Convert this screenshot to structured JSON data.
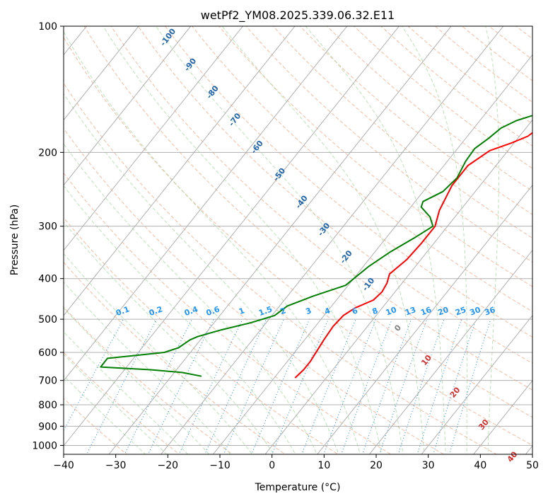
{
  "chart_data": {
    "type": "line",
    "subtype": "skew-t log-p",
    "title": "wetPf2_YM08.2025.339.06.32.E11",
    "xlabel": "Temperature (°C)",
    "ylabel": "Pressure (hPa)",
    "xlim": [
      -40,
      50
    ],
    "ylim": [
      1050,
      100
    ],
    "y_scale": "log",
    "x_ticks": [
      "−40",
      "−30",
      "−20",
      "−10",
      "0",
      "10",
      "20",
      "30",
      "40",
      "50"
    ],
    "y_ticks": [
      "1000",
      "900",
      "800",
      "700",
      "600",
      "500",
      "400",
      "300",
      "200",
      "100"
    ],
    "grid": true,
    "series": [
      {
        "key": "temperature",
        "color": "#ff0000",
        "points": [
          {
            "p": 690,
            "t": -6.0
          },
          {
            "p": 660,
            "t": -5.6
          },
          {
            "p": 630,
            "t": -5.6
          },
          {
            "p": 560,
            "t": -6.3
          },
          {
            "p": 520,
            "t": -6.6
          },
          {
            "p": 490,
            "t": -6.3
          },
          {
            "p": 470,
            "t": -5.2
          },
          {
            "p": 450,
            "t": -2.9
          },
          {
            "p": 430,
            "t": -2.5
          },
          {
            "p": 410,
            "t": -2.9
          },
          {
            "p": 390,
            "t": -3.8
          },
          {
            "p": 360,
            "t": -2.7
          },
          {
            "p": 330,
            "t": -2.4
          },
          {
            "p": 300,
            "t": -2.4
          },
          {
            "p": 275,
            "t": -4.0
          },
          {
            "p": 240,
            "t": -5.4
          },
          {
            "p": 215,
            "t": -5.4
          },
          {
            "p": 198,
            "t": -3.5
          },
          {
            "p": 190,
            "t": -0.5
          },
          {
            "p": 183,
            "t": 1.6
          },
          {
            "p": 170,
            "t": 3.0
          },
          {
            "p": 158,
            "t": 5.5
          },
          {
            "p": 145,
            "t": 10.3
          },
          {
            "p": 133,
            "t": 18.0
          },
          {
            "p": 120,
            "t": 26.5
          },
          {
            "p": 110,
            "t": 30.3
          },
          {
            "p": 100,
            "t": 33.5
          }
        ]
      },
      {
        "key": "dewpoint",
        "color": "#008000",
        "points": [
          {
            "p": 684,
            "t": -24.2
          },
          {
            "p": 670,
            "t": -28.5
          },
          {
            "p": 660,
            "t": -35.0
          },
          {
            "p": 650,
            "t": -45.0
          },
          {
            "p": 620,
            "t": -45.0
          },
          {
            "p": 610,
            "t": -40.0
          },
          {
            "p": 600,
            "t": -35.0
          },
          {
            "p": 585,
            "t": -33.0
          },
          {
            "p": 560,
            "t": -32.0
          },
          {
            "p": 550,
            "t": -31.0
          },
          {
            "p": 530,
            "t": -27.5
          },
          {
            "p": 510,
            "t": -23.0
          },
          {
            "p": 490,
            "t": -19.5
          },
          {
            "p": 465,
            "t": -18.5
          },
          {
            "p": 440,
            "t": -15.0
          },
          {
            "p": 415,
            "t": -10.5
          },
          {
            "p": 375,
            "t": -9.0
          },
          {
            "p": 345,
            "t": -7.0
          },
          {
            "p": 320,
            "t": -4.6
          },
          {
            "p": 300,
            "t": -2.8
          },
          {
            "p": 285,
            "t": -4.8
          },
          {
            "p": 270,
            "t": -8.0
          },
          {
            "p": 262,
            "t": -8.5
          },
          {
            "p": 248,
            "t": -6.2
          },
          {
            "p": 230,
            "t": -5.6
          },
          {
            "p": 210,
            "t": -6.5
          },
          {
            "p": 196,
            "t": -6.7
          },
          {
            "p": 185,
            "t": -5.6
          },
          {
            "p": 175,
            "t": -4.8
          },
          {
            "p": 168,
            "t": -3.0
          },
          {
            "p": 162,
            "t": 0.0
          },
          {
            "p": 155,
            "t": 2.0
          },
          {
            "p": 145,
            "t": 3.6
          },
          {
            "p": 135,
            "t": 3.5
          },
          {
            "p": 125,
            "t": 5.0
          },
          {
            "p": 115,
            "t": 9.0
          },
          {
            "p": 108,
            "t": 10.5
          },
          {
            "p": 100,
            "t": 11.7
          }
        ]
      }
    ],
    "annotations": {
      "dry_adiabat_labels": [
        "-100",
        "-90",
        "-80",
        "-70",
        "-60",
        "-50",
        "-40",
        "-30",
        "-20",
        "-10"
      ],
      "mixing_ratio_labels": [
        "0.1",
        "0.2",
        "0.4",
        "0.6",
        "1",
        "1.5",
        "2",
        "3",
        "4",
        "6",
        "8",
        "10",
        "13",
        "16",
        "20",
        "25",
        "30",
        "36"
      ],
      "moist_adiabat_labels": [
        "0",
        "10",
        "20",
        "30",
        "40"
      ]
    },
    "colors": {
      "isotherm": "#b0b0b0",
      "isobar": "#b0b0b0",
      "dry_adiabat": "#f4a582",
      "moist_adiabat": "#a6d9a0",
      "mixing_ratio": "#1e88e5",
      "dry_label": "#2166ac",
      "mixing_label": "#2196f3",
      "moist_label": "#d32f2f",
      "zero_label": "#808080"
    }
  }
}
